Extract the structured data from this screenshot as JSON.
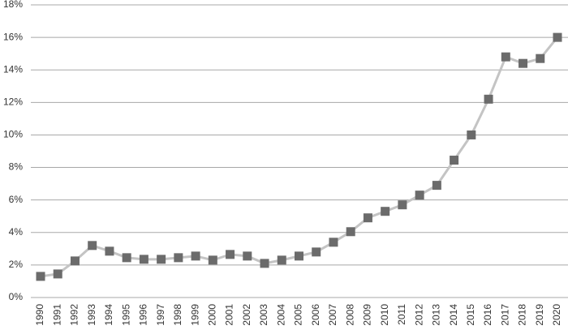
{
  "chart_data": {
    "type": "line",
    "categories": [
      "1990",
      "1991",
      "1992",
      "1993",
      "1994",
      "1995",
      "1996",
      "1997",
      "1998",
      "1999",
      "2000",
      "2001",
      "2002",
      "2003",
      "2004",
      "2005",
      "2006",
      "2007",
      "2008",
      "2009",
      "2010",
      "2011",
      "2012",
      "2013",
      "2014",
      "2015",
      "2016",
      "2017",
      "2018",
      "2019",
      "2020"
    ],
    "series": [
      {
        "color": "#6b6b6b",
        "line_color": "#c4c4c4",
        "values": [
          1.3,
          1.45,
          2.25,
          3.2,
          2.85,
          2.45,
          2.35,
          2.35,
          2.45,
          2.55,
          2.3,
          2.65,
          2.55,
          2.1,
          2.3,
          2.55,
          2.8,
          3.4,
          4.05,
          4.9,
          5.3,
          5.7,
          6.3,
          6.9,
          8.45,
          10.0,
          12.2,
          14.8,
          14.4,
          14.7,
          16.0
        ]
      }
    ],
    "ylim": [
      0,
      18
    ],
    "yticks": [
      {
        "value": 0,
        "label": "0%"
      },
      {
        "value": 2,
        "label": "2%"
      },
      {
        "value": 4,
        "label": "4%"
      },
      {
        "value": 6,
        "label": "6%"
      },
      {
        "value": 8,
        "label": "8%"
      },
      {
        "value": 10,
        "label": "10%"
      },
      {
        "value": 12,
        "label": "12%"
      },
      {
        "value": 14,
        "label": "14%"
      },
      {
        "value": 16,
        "label": "16%"
      },
      {
        "value": 18,
        "label": "18%"
      }
    ],
    "grid": true
  }
}
